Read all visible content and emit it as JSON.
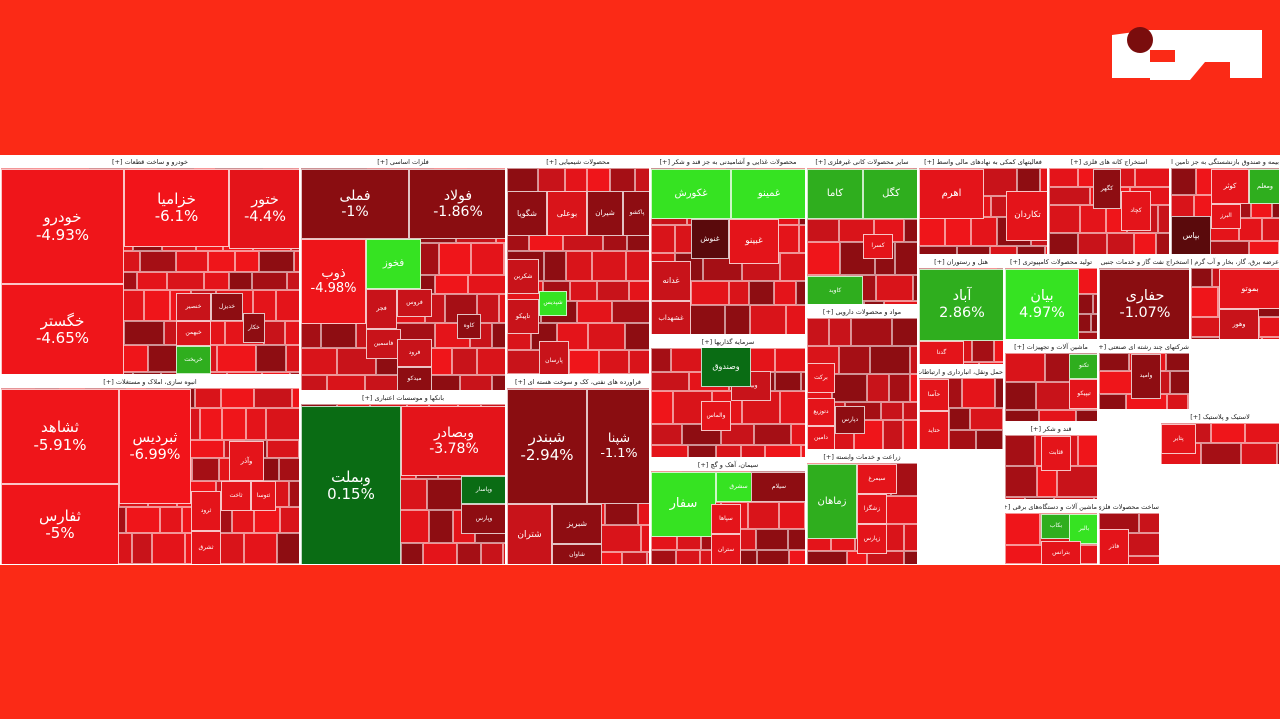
{
  "sectors": [
    {
      "title": "خودرو و ساخت قطعات [+]",
      "tiles": [
        {
          "label": "خودرو",
          "change": "-4.93%",
          "color": "#ef151a"
        },
        {
          "label": "خگستر",
          "change": "-4.65%",
          "color": "#ef151a"
        },
        {
          "label": "خزامیا",
          "change": "-6.1%",
          "color": "#f2141a"
        },
        {
          "label": "ختور",
          "change": "-4.4%",
          "color": "#e4141a"
        },
        {
          "label": "خنصیر",
          "color": "#c8131a"
        },
        {
          "label": "خدیزل",
          "color": "#8e0d12"
        },
        {
          "label": "خبهمن",
          "color": "#d9141a"
        },
        {
          "label": "خکار",
          "color": "#8e0d12"
        },
        {
          "label": "خریخت",
          "color": "#2fae1e"
        }
      ]
    },
    {
      "title": "انبوه سازی، املاک و مستغلات [+]",
      "tiles": [
        {
          "label": "ثشاهد",
          "change": "-5.91%",
          "color": "#ef151a"
        },
        {
          "label": "ثفارس",
          "change": "-5%",
          "color": "#ef151a"
        },
        {
          "label": "ثبردیس",
          "change": "-6.99%",
          "color": "#f2141a"
        },
        {
          "label": "ثرود",
          "color": "#e4141a"
        },
        {
          "label": "وآذر",
          "color": "#e4141a"
        },
        {
          "label": "ثاخت",
          "color": "#e4141a"
        },
        {
          "label": "ثتوسا",
          "color": "#e4141a"
        },
        {
          "label": "ثشرق",
          "color": "#e4141a"
        }
      ]
    },
    {
      "title": "فلزات اساسی [+]",
      "tiles": [
        {
          "label": "فملی",
          "change": "-1%",
          "color": "#8a0d11"
        },
        {
          "label": "فولاد",
          "change": "-1.86%",
          "color": "#8a0d11"
        },
        {
          "label": "ذوب",
          "change": "-4.98%",
          "color": "#ee151a"
        },
        {
          "label": "فخوز",
          "color": "#36e322"
        },
        {
          "label": "فروس",
          "color": "#c8131a"
        },
        {
          "label": "فجر",
          "color": "#c8131a"
        },
        {
          "label": "کاوه",
          "color": "#8e0d12"
        },
        {
          "label": "فاسمین",
          "color": "#c8131a"
        },
        {
          "label": "فرود",
          "color": "#c8131a"
        },
        {
          "label": "میدکو",
          "color": "#8e0d12"
        }
      ]
    },
    {
      "title": "بانکها و موسسات اعتباری [+]",
      "tiles": [
        {
          "label": "وبملت",
          "change": "0.15%",
          "color": "#0a6c14"
        },
        {
          "label": "وبصادر",
          "change": "-3.78%",
          "color": "#e4141a"
        },
        {
          "label": "وپاسار",
          "color": "#0a6c14"
        },
        {
          "label": "وپارس",
          "color": "#8e0d12"
        }
      ]
    },
    {
      "title": "محصولات شیمیایی [+]",
      "tiles": [
        {
          "label": "شگویا",
          "color": "#8e0d12"
        },
        {
          "label": "بوعلی",
          "color": "#d9141a"
        },
        {
          "label": "شیران",
          "color": "#8e0d12"
        },
        {
          "label": "پاکشو",
          "color": "#8e0d12"
        },
        {
          "label": "شکربن",
          "color": "#c8131a"
        },
        {
          "label": "تاپیکو",
          "color": "#c8131a"
        },
        {
          "label": "شپدیس",
          "color": "#36e322"
        },
        {
          "label": "پارسان",
          "color": "#c8131a"
        }
      ]
    },
    {
      "title": "فراورده های نفتی، کک و سوخت هسته ای [+]",
      "tiles": [
        {
          "label": "شبندر",
          "change": "-2.94%",
          "color": "#8a0d11"
        },
        {
          "label": "شپنا",
          "change": "-1.1%",
          "color": "#8a0d11"
        },
        {
          "label": "شتران",
          "color": "#c8131a"
        },
        {
          "label": "شبریز",
          "color": "#8e0d12"
        },
        {
          "label": "شاوان",
          "color": "#8e0d12"
        }
      ]
    },
    {
      "title": "محصولات غذایی و آشامیدنی به جز قند و شکر [+]",
      "tiles": [
        {
          "label": "غکورش",
          "color": "#36e322"
        },
        {
          "label": "غمینو",
          "color": "#36e322"
        },
        {
          "label": "غنوش",
          "color": "#5a0a0c"
        },
        {
          "label": "غبینو",
          "color": "#e4141a"
        },
        {
          "label": "غدانه",
          "color": "#c8131a"
        },
        {
          "label": "غشهداب",
          "color": "#c8131a"
        }
      ]
    },
    {
      "title": "سرمایه گذاریها [+]",
      "tiles": [
        {
          "label": "وبیمه",
          "color": "#c8131a"
        },
        {
          "label": "والماس",
          "color": "#e4141a"
        },
        {
          "label": "وصندوق",
          "color": "#0a6c14"
        }
      ]
    },
    {
      "title": "سیمان، آهک و گچ [+]",
      "tiles": [
        {
          "label": "سفار",
          "color": "#36e322"
        },
        {
          "label": "سشرق",
          "color": "#36e322"
        },
        {
          "label": "سیلام",
          "color": "#8e0d12"
        },
        {
          "label": "سپاها",
          "color": "#e4141a"
        },
        {
          "label": "ستران",
          "color": "#e4141a"
        }
      ]
    },
    {
      "title": "سایر محصولات کانی غیرفلزی [+]",
      "tiles": [
        {
          "label": "کاما",
          "color": "#2fae1e"
        },
        {
          "label": "کگل",
          "color": "#2fae1e"
        },
        {
          "label": "کسرا",
          "color": "#e4141a"
        },
        {
          "label": "کاوید",
          "color": "#2fae1e"
        }
      ]
    },
    {
      "title": "مواد و محصولات دارویی [+]",
      "tiles": [
        {
          "label": "برکت",
          "color": "#e4141a"
        },
        {
          "label": "دپارس",
          "color": "#8e0d12"
        },
        {
          "label": "دتوزیع",
          "color": "#e4141a"
        },
        {
          "label": "دامین",
          "color": "#e4141a"
        }
      ]
    },
    {
      "title": "زراعت و خدمات وابسته [+]",
      "tiles": [
        {
          "label": "زماهان",
          "color": "#2fae1e"
        },
        {
          "label": "سیمرغ",
          "color": "#e4141a"
        },
        {
          "label": "زشگزا",
          "color": "#e4141a"
        },
        {
          "label": "زپارس",
          "color": "#e4141a"
        }
      ]
    },
    {
      "title": "فعالیتهای کمکی به نهادهای مالی واسط [+]",
      "tiles": [
        {
          "label": "اهرم",
          "color": "#e4141a"
        },
        {
          "label": "تکاردان",
          "color": "#e4141a"
        }
      ]
    },
    {
      "title": "استخراج کانه های فلزی [+]",
      "tiles": [
        {
          "label": "کچاد",
          "color": "#e4141a"
        },
        {
          "label": "کگهر",
          "color": "#8e0d12"
        }
      ]
    },
    {
      "title": "بیمه و صندوق بازنشستگی به جز تامین اجتماعی [+]",
      "tiles": [
        {
          "label": "بپاس",
          "color": "#5a0a0c"
        },
        {
          "label": "کوثر",
          "color": "#e4141a"
        },
        {
          "label": "ومعلم",
          "color": "#2fae1e"
        },
        {
          "label": "البرز",
          "color": "#e4141a"
        }
      ]
    },
    {
      "title": "هتل و رستوران [+]",
      "tiles": [
        {
          "label": "آباد",
          "change": "2.86%",
          "color": "#2fae1e"
        },
        {
          "label": "گدنا",
          "color": "#e4141a"
        }
      ]
    },
    {
      "title": "تولید محصولات کامپیوتری [+]",
      "tiles": [
        {
          "label": "بیان",
          "change": "4.97%",
          "color": "#36e322"
        }
      ]
    },
    {
      "title": "استخراج نفت گاز و خدمات جنبی [+]",
      "tiles": [
        {
          "label": "حفاری",
          "change": "-1.07%",
          "color": "#8a0d11"
        }
      ]
    },
    {
      "title": "عرضه برق، گاز، بخار و آب گرم [+]",
      "tiles": [
        {
          "label": "بموتو",
          "color": "#e4141a"
        },
        {
          "label": "وهور",
          "color": "#c8131a"
        }
      ]
    },
    {
      "title": "ماشین آلات و تجهیزات [+]",
      "tiles": [
        {
          "label": "تکنو",
          "color": "#2fae1e"
        },
        {
          "label": "تیپیکو",
          "color": "#e4141a"
        }
      ]
    },
    {
      "title": "شرکتهای چند رشته ای صنعتی [+]",
      "tiles": [
        {
          "label": "وامید",
          "color": "#8e0d12"
        },
        {
          "label": "ولصنم",
          "color": "#2fae1e"
        }
      ]
    },
    {
      "title": "حمل ونقل، انبارداری و ارتباطات [+]",
      "tiles": [
        {
          "label": "حتاید",
          "color": "#e4141a"
        },
        {
          "label": "حآسا",
          "color": "#e4141a"
        }
      ]
    },
    {
      "title": "قند و شکر [+]",
      "tiles": [
        {
          "label": "قثابت",
          "color": "#e4141a"
        }
      ]
    },
    {
      "title": "ماشین آلات و دستگاه‌های برقی [+]",
      "tiles": [
        {
          "label": "بکاب",
          "color": "#2fae1e"
        },
        {
          "label": "بالبر",
          "color": "#36e322"
        },
        {
          "label": "بترانس",
          "color": "#e4141a"
        }
      ]
    },
    {
      "title": "لاستیک و پلاستیک [+]",
      "tiles": [
        {
          "label": "پتایر",
          "color": "#e4141a"
        },
        {
          "label": "کماسه",
          "color": "#0a6c14"
        }
      ]
    },
    {
      "title": "ساخت محصولات فلزی [+]",
      "tiles": [
        {
          "label": "فاذر",
          "color": "#e4141a"
        }
      ]
    }
  ]
}
